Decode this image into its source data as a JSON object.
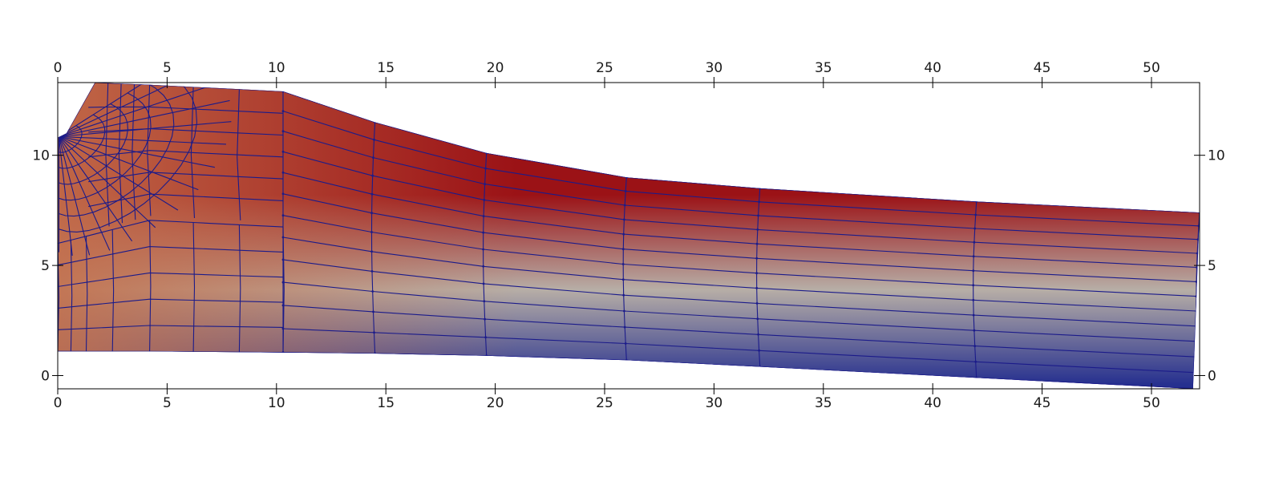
{
  "chart_data": {
    "type": "mesh",
    "title": "",
    "xlabel": "",
    "ylabel": "",
    "xlim": [
      0,
      52.2
    ],
    "ylim": [
      -0.6,
      13.3
    ],
    "grid": false,
    "x_ticks": [
      0,
      5,
      10,
      15,
      20,
      25,
      30,
      35,
      40,
      45,
      50
    ],
    "y_ticks": [
      0,
      5,
      10
    ],
    "colormap": {
      "name": "cool-to-warm",
      "low_color": "#26308f",
      "mid_color": "#b7aea6",
      "high_color": "#9b1216",
      "upper_left_color": "#c4704c"
    },
    "mesh_color": "#1b1b8a",
    "domain_outline": [
      [
        0,
        1.1
      ],
      [
        0,
        10.8
      ],
      [
        0.4,
        11.0
      ],
      [
        1.7,
        13.3
      ],
      [
        4.2,
        13.2
      ],
      [
        10.3,
        12.9
      ],
      [
        14.5,
        11.5
      ],
      [
        19.6,
        10.1
      ],
      [
        26.0,
        9.0
      ],
      [
        32.1,
        8.5
      ],
      [
        42.0,
        7.9
      ],
      [
        52.2,
        7.4
      ],
      [
        51.9,
        -0.6
      ],
      [
        42.0,
        -0.1
      ],
      [
        32.1,
        0.4
      ],
      [
        26.0,
        0.7
      ],
      [
        19.6,
        0.9
      ],
      [
        14.5,
        1.0
      ],
      [
        10.3,
        1.05
      ],
      [
        4.2,
        1.1
      ],
      [
        0,
        1.1
      ]
    ]
  }
}
